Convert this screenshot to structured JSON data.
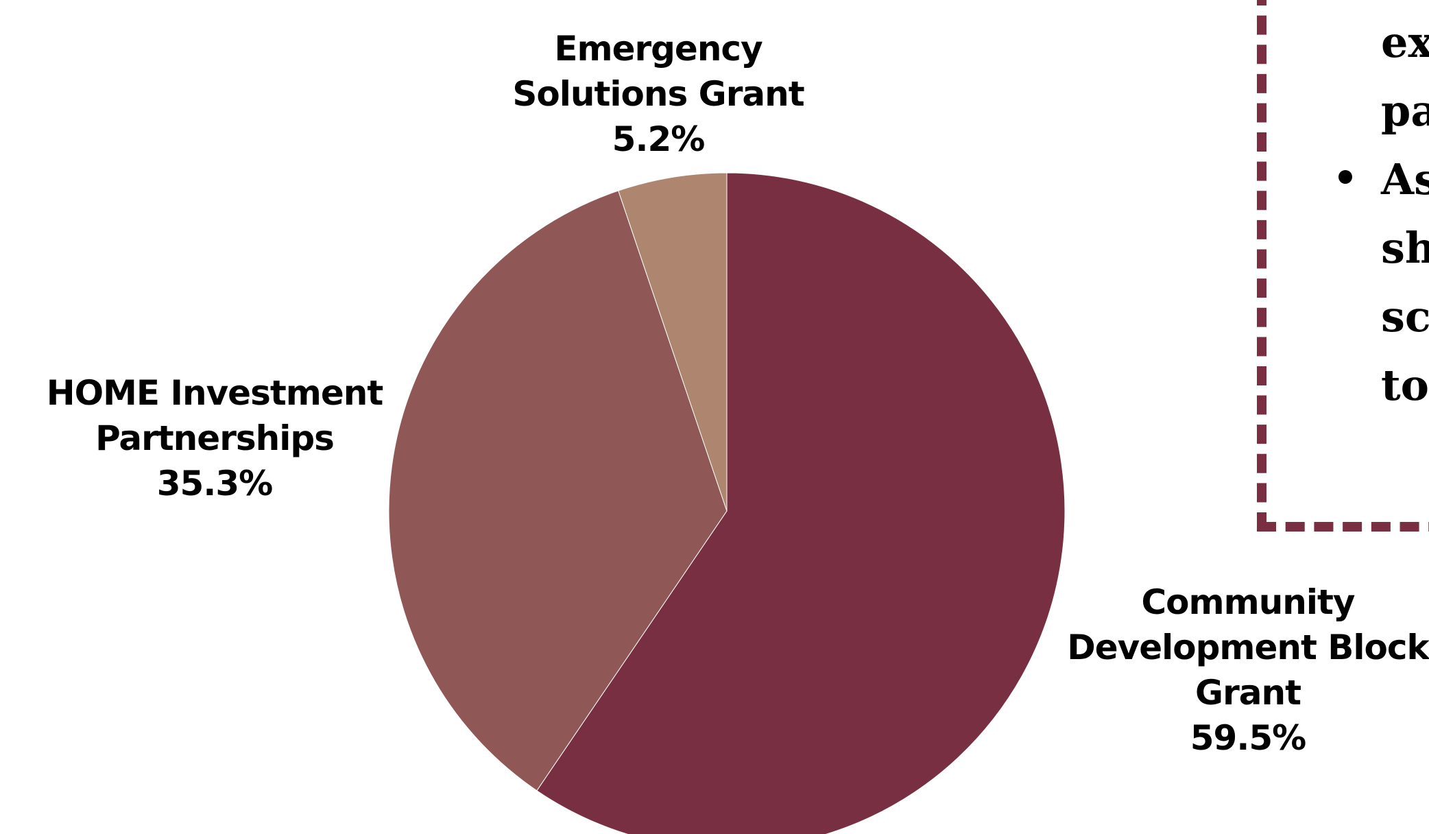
{
  "chart_data": {
    "type": "pie",
    "slices": [
      {
        "name": "Community Development Block Grant",
        "value": 59.5,
        "value_label": "59.5%",
        "color": "#792f42"
      },
      {
        "name": "HOME Investment Partnerships",
        "value": 35.3,
        "value_label": "35.3%",
        "color": "#905757"
      },
      {
        "name": "Emergency Solutions Grant",
        "value": 5.2,
        "value_label": "5.2%",
        "color": "#ae8670"
      }
    ],
    "labels": {
      "cdbg": {
        "line1": "Community",
        "line2": "Development Block",
        "line3": "Grant",
        "value": "59.5%"
      },
      "home": {
        "line1": "HOME Investment",
        "line2": "Partnerships",
        "value": "35.3%"
      },
      "esg": {
        "line1": "Emergency",
        "line2": "Solutions Grant",
        "value": "5.2%"
      }
    },
    "start_angle": "12 o'clock",
    "direction": "clockwise"
  },
  "side_panel": {
    "lines": [
      "exp",
      "par",
      "As",
      "sho",
      "sch",
      "to r"
    ],
    "border_color": "#792f42"
  }
}
